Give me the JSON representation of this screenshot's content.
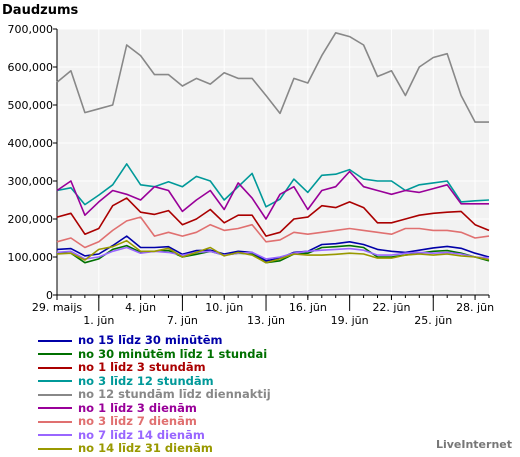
{
  "chart_data": {
    "type": "line",
    "title": "Daudzums",
    "xlabel": "",
    "ylabel": "",
    "ylim": [
      0,
      700000
    ],
    "y_ticks": [
      0,
      100000,
      200000,
      300000,
      400000,
      500000,
      600000,
      700000
    ],
    "y_tick_labels": [
      "0",
      "100,000",
      "200,000",
      "300,000",
      "400,000",
      "500,000",
      "600,000",
      "700,000"
    ],
    "x_tick_labels": [
      {
        "index": 0,
        "label": "29. maijs",
        "row": 0
      },
      {
        "index": 3,
        "label": "1. jūn",
        "row": 1
      },
      {
        "index": 6,
        "label": "4. jūn",
        "row": 0
      },
      {
        "index": 9,
        "label": "7. jūn",
        "row": 1
      },
      {
        "index": 12,
        "label": "10. jūn",
        "row": 0
      },
      {
        "index": 15,
        "label": "13. jūn",
        "row": 1
      },
      {
        "index": 18,
        "label": "16. jūn",
        "row": 0
      },
      {
        "index": 21,
        "label": "19. jūn",
        "row": 1
      },
      {
        "index": 24,
        "label": "22. jūn",
        "row": 0
      },
      {
        "index": 27,
        "label": "25. jūn",
        "row": 1
      },
      {
        "index": 30,
        "label": "28. jūn",
        "row": 0
      }
    ],
    "grid": true,
    "legend_position": "bottom-left",
    "series": [
      {
        "name": "no 15 līdz 30 minūtēm",
        "color": "#0000a8",
        "values": [
          120000,
          122000,
          103000,
          108000,
          130000,
          155000,
          125000,
          125000,
          127000,
          107000,
          117000,
          118000,
          108000,
          115000,
          112000,
          90000,
          97000,
          112000,
          115000,
          133000,
          135000,
          140000,
          133000,
          120000,
          115000,
          112000,
          118000,
          124000,
          128000,
          123000,
          110000,
          100000
        ]
      },
      {
        "name": "no 30 minūtēm līdz 1 stundai",
        "color": "#007000",
        "values": [
          110000,
          110000,
          85000,
          95000,
          120000,
          130000,
          112000,
          115000,
          117000,
          100000,
          107000,
          115000,
          105000,
          110000,
          108000,
          85000,
          90000,
          108000,
          110000,
          125000,
          127000,
          130000,
          125000,
          100000,
          100000,
          105000,
          110000,
          115000,
          117000,
          110000,
          100000,
          90000
        ]
      },
      {
        "name": "no 1 līdz 3 stundām",
        "color": "#aa0000",
        "values": [
          205000,
          215000,
          160000,
          175000,
          235000,
          255000,
          218000,
          212000,
          222000,
          185000,
          200000,
          225000,
          190000,
          210000,
          210000,
          155000,
          165000,
          200000,
          205000,
          235000,
          230000,
          245000,
          230000,
          190000,
          190000,
          200000,
          210000,
          215000,
          218000,
          220000,
          185000,
          170000
        ]
      },
      {
        "name": "no 3 līdz 12 stundām",
        "color": "#009999",
        "values": [
          275000,
          282000,
          238000,
          263000,
          290000,
          345000,
          290000,
          285000,
          298000,
          285000,
          312000,
          300000,
          250000,
          285000,
          320000,
          232000,
          252000,
          305000,
          270000,
          315000,
          318000,
          330000,
          305000,
          300000,
          300000,
          275000,
          290000,
          295000,
          300000,
          245000,
          248000,
          250000
        ]
      },
      {
        "name": "no 12 stundām līdz diennaktij",
        "color": "#888888",
        "values": [
          560000,
          590000,
          480000,
          490000,
          500000,
          658000,
          630000,
          580000,
          580000,
          550000,
          570000,
          555000,
          585000,
          570000,
          570000,
          525000,
          478000,
          570000,
          558000,
          630000,
          690000,
          680000,
          658000,
          575000,
          590000,
          525000,
          600000,
          625000,
          635000,
          525000,
          455000,
          455000
        ]
      },
      {
        "name": "no 1 līdz 3 dienām",
        "color": "#990099",
        "values": [
          275000,
          300000,
          210000,
          245000,
          275000,
          265000,
          250000,
          285000,
          275000,
          220000,
          250000,
          275000,
          225000,
          295000,
          255000,
          200000,
          265000,
          285000,
          225000,
          275000,
          285000,
          325000,
          285000,
          275000,
          265000,
          275000,
          270000,
          280000,
          290000,
          240000,
          240000,
          240000
        ]
      },
      {
        "name": "no 3 līdz 7 dienām",
        "color": "#e07070",
        "values": [
          140000,
          150000,
          125000,
          140000,
          170000,
          195000,
          205000,
          155000,
          165000,
          155000,
          165000,
          185000,
          170000,
          175000,
          185000,
          140000,
          145000,
          165000,
          160000,
          165000,
          170000,
          175000,
          170000,
          165000,
          160000,
          175000,
          175000,
          170000,
          170000,
          165000,
          150000,
          155000
        ]
      },
      {
        "name": "no 7 līdz 14 dienām",
        "color": "#9966ff",
        "values": [
          112000,
          115000,
          95000,
          100000,
          115000,
          125000,
          110000,
          115000,
          112000,
          105000,
          112000,
          115000,
          105000,
          110000,
          112000,
          95000,
          100000,
          110000,
          115000,
          118000,
          120000,
          122000,
          118000,
          105000,
          105000,
          110000,
          112000,
          110000,
          112000,
          108000,
          100000,
          98000
        ]
      },
      {
        "name": "no 14 līdz 31 dienām",
        "color": "#999900",
        "values": [
          108000,
          110000,
          92000,
          120000,
          127000,
          143000,
          115000,
          115000,
          123000,
          100000,
          112000,
          125000,
          103000,
          112000,
          105000,
          85000,
          95000,
          108000,
          105000,
          105000,
          107000,
          110000,
          108000,
          97000,
          97000,
          105000,
          108000,
          105000,
          108000,
          103000,
          100000,
          93000
        ]
      }
    ]
  },
  "footer": {
    "credit": "LiveInternet"
  }
}
